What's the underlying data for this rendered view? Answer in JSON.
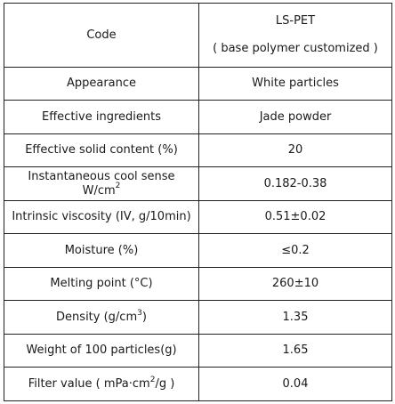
{
  "rows": [
    {
      "label": "Code",
      "value_line1": "LS-PET",
      "value_line2": "( base polymer customized )"
    },
    {
      "label": "Appearance",
      "value": "White particles"
    },
    {
      "label": "Effective ingredients",
      "value": "Jade powder"
    },
    {
      "label": "Effective solid content (%)",
      "value": "20"
    },
    {
      "label_pre": "Instantaneous cool sense W/cm",
      "label_sup": "2",
      "value": "0.182-0.38"
    },
    {
      "label": "Intrinsic viscosity (IV, g/10min)",
      "value": "0.51±0.02"
    },
    {
      "label": "Moisture (%)",
      "value": "≤0.2"
    },
    {
      "label": "Melting point (°C)",
      "value": "260±10"
    },
    {
      "label_pre": "Density (g/cm",
      "label_sup": "3",
      "label_post": ")",
      "value": "1.35"
    },
    {
      "label": "Weight of 100 particles(g)",
      "value": "1.65"
    },
    {
      "label_pre": "Filter value ( mPa·cm",
      "label_sup": "2",
      "label_post": "/g )",
      "value": "0.04"
    }
  ]
}
